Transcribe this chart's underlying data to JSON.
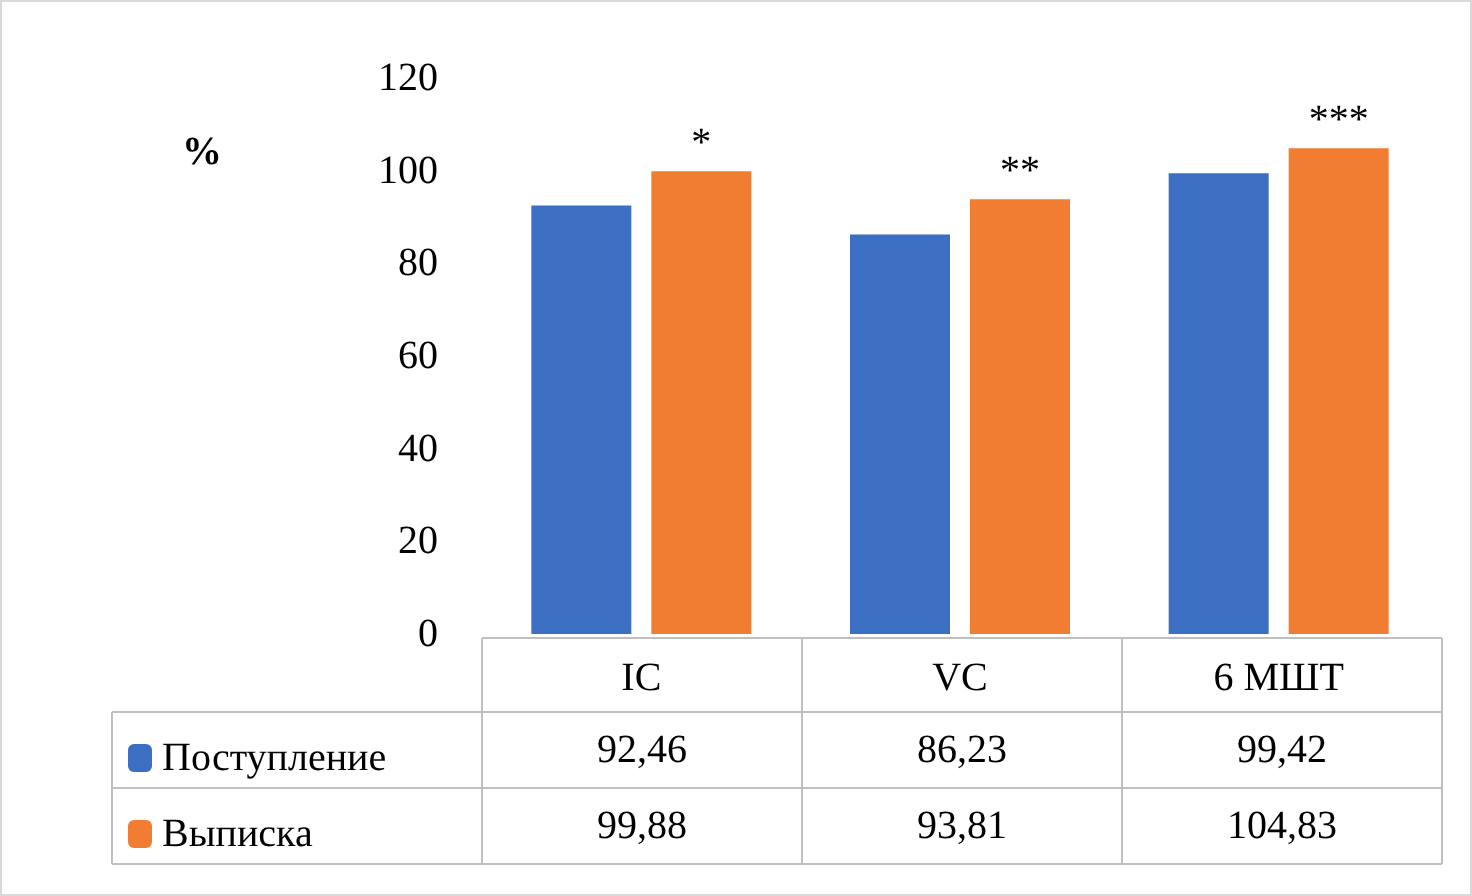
{
  "chart_data": {
    "type": "bar",
    "ylabel": "%",
    "categories": [
      "IC",
      "VC",
      "6 МШТ"
    ],
    "series": [
      {
        "name": "Поступление",
        "color": "#3b6fc2",
        "values": [
          92.46,
          86.23,
          99.42
        ],
        "value_labels": [
          "92,46",
          "86,23",
          "99,42"
        ]
      },
      {
        "name": "Выписка",
        "color": "#f07d31",
        "values": [
          99.88,
          93.81,
          104.83
        ],
        "value_labels": [
          "99,88",
          "93,81",
          "104,83"
        ]
      }
    ],
    "annotations": [
      "*",
      "**",
      "***"
    ],
    "ylim": [
      0,
      120
    ],
    "yticks": [
      0,
      20,
      40,
      60,
      80,
      100,
      120
    ],
    "grid": false,
    "legend": "bottom left"
  }
}
